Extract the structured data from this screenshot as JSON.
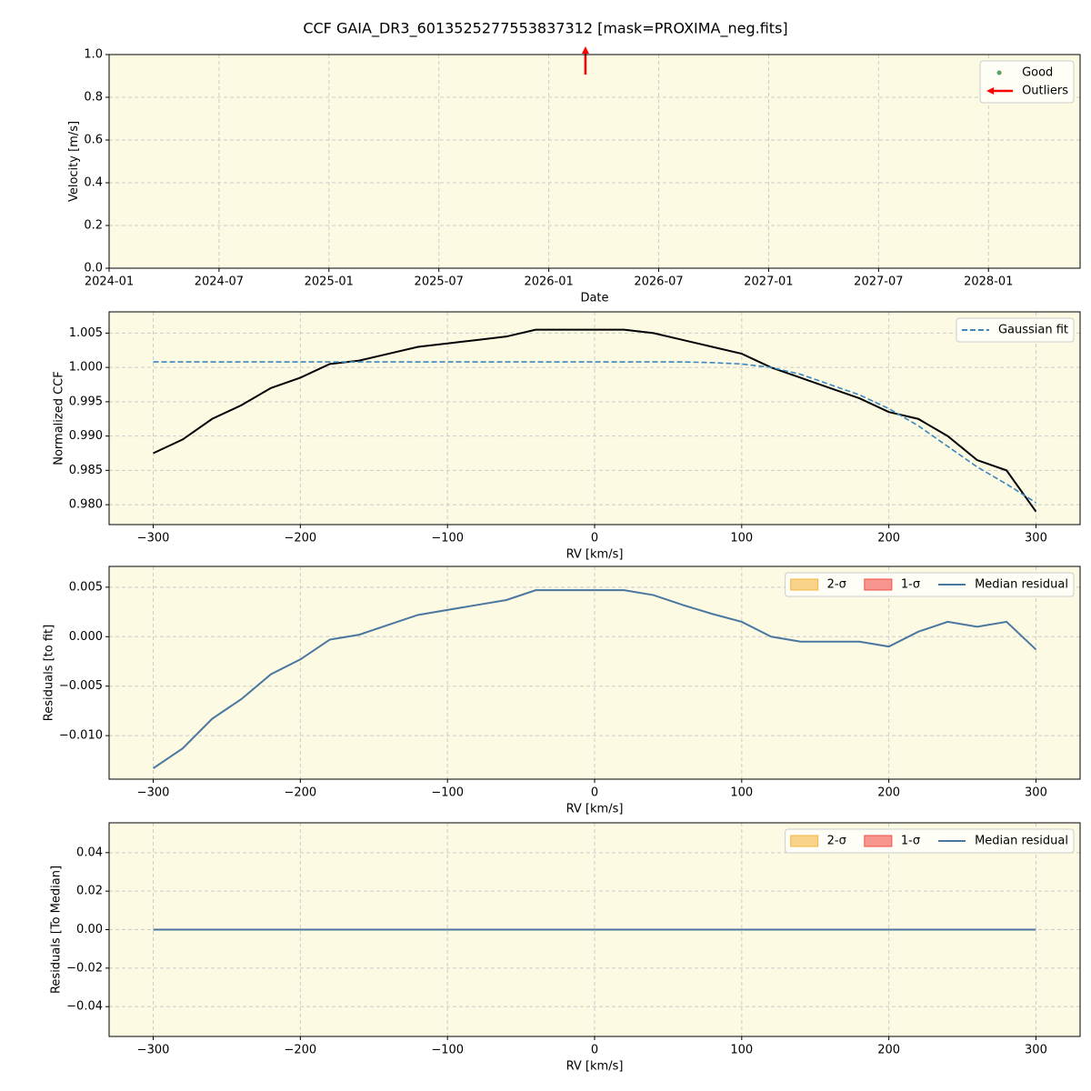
{
  "title": "CCF GAIA_DR3_6013525277553837312 [mask=PROXIMA_neg.fits]",
  "chart_data": [
    {
      "type": "scatter",
      "xlabel": "Date",
      "ylabel": "Velocity [m/s]",
      "background": "#fcfae2",
      "grid": true,
      "legend": "upper right",
      "xlim": [
        "2024-01",
        "2028-06"
      ],
      "xticks": [
        "2024-01",
        "2024-07",
        "2025-01",
        "2025-07",
        "2026-01",
        "2026-07",
        "2027-01",
        "2027-07",
        "2028-01"
      ],
      "ylim": [
        0,
        1
      ],
      "yticks": [
        {
          "value": 0,
          "label": "0.0"
        },
        0.2,
        0.4,
        0.6,
        0.8,
        {
          "value": 1,
          "label": "1.0"
        }
      ],
      "series": [
        {
          "name": "Good",
          "color": "#5aa05a",
          "marker": "dot"
        },
        {
          "name": "Outliers",
          "color": "#ff0000",
          "marker": "arrow",
          "x": [
            "2026-03"
          ],
          "direction": "up"
        }
      ]
    },
    {
      "type": "line",
      "xlabel": "RV [km/s]",
      "ylabel": "Normalized CCF",
      "background": "#fcfae2",
      "grid": true,
      "legend": "upper right",
      "xlim": [
        -330,
        330
      ],
      "xticks": [
        {
          "value": -300,
          "label": "−300"
        },
        {
          "value": -200,
          "label": "−200"
        },
        {
          "value": -100,
          "label": "−100"
        },
        0,
        100,
        200,
        300
      ],
      "ylim": [
        0.9771,
        1.0081
      ],
      "yticks": [
        {
          "value": 0.98,
          "label": "0.980"
        },
        {
          "value": 0.985,
          "label": "0.985"
        },
        {
          "value": 0.99,
          "label": "0.990"
        },
        {
          "value": 0.995,
          "label": "0.995"
        },
        {
          "value": 1.0,
          "label": "1.000"
        },
        {
          "value": 1.005,
          "label": "1.005"
        }
      ],
      "x": [
        -300,
        -280,
        -260,
        -240,
        -220,
        -200,
        -180,
        -160,
        -140,
        -120,
        -100,
        -80,
        -60,
        -40,
        -20,
        0,
        20,
        40,
        60,
        80,
        100,
        120,
        140,
        160,
        180,
        200,
        220,
        240,
        260,
        280,
        300
      ],
      "series": [
        {
          "color": "#000000",
          "values": [
            0.9875,
            0.9895,
            0.9925,
            0.9945,
            0.997,
            0.9985,
            1.0005,
            1.001,
            1.002,
            1.003,
            1.0035,
            1.004,
            1.0045,
            1.0055,
            1.0055,
            1.0055,
            1.0055,
            1.005,
            1.004,
            1.003,
            1.002,
            1.0,
            0.9985,
            0.997,
            0.9955,
            0.9935,
            0.9925,
            0.99,
            0.9865,
            0.985,
            0.979
          ]
        },
        {
          "name": "Gaussian fit",
          "color": "#3a87c0",
          "dashed": true,
          "values": [
            1.0008,
            1.0008,
            1.0008,
            1.0008,
            1.0008,
            1.0008,
            1.0008,
            1.0008,
            1.0008,
            1.0008,
            1.0008,
            1.0008,
            1.0008,
            1.0008,
            1.0008,
            1.0008,
            1.0008,
            1.0008,
            1.0008,
            1.0007,
            1.0005,
            1.0,
            0.999,
            0.9975,
            0.996,
            0.994,
            0.9915,
            0.9885,
            0.9855,
            0.983,
            0.9803
          ]
        }
      ]
    },
    {
      "type": "line",
      "xlabel": "RV [km/s]",
      "ylabel": "Residuals [to fit]",
      "background": "#fcfae2",
      "grid": true,
      "legend": "upper right",
      "xlim": [
        -330,
        330
      ],
      "xticks": [
        {
          "value": -300,
          "label": "−300"
        },
        {
          "value": -200,
          "label": "−200"
        },
        {
          "value": -100,
          "label": "−100"
        },
        0,
        100,
        200,
        300
      ],
      "ylim": [
        -0.0144,
        0.0071
      ],
      "yticks": [
        {
          "value": -0.01,
          "label": "−0.010"
        },
        {
          "value": -0.005,
          "label": "−0.005"
        },
        {
          "value": 0,
          "label": "0.000"
        },
        {
          "value": 0.005,
          "label": "0.005"
        }
      ],
      "x": [
        -300,
        -280,
        -260,
        -240,
        -220,
        -200,
        -180,
        -160,
        -140,
        -120,
        -100,
        -80,
        -60,
        -40,
        -20,
        0,
        20,
        40,
        60,
        80,
        100,
        120,
        140,
        160,
        180,
        200,
        220,
        240,
        260,
        280,
        300
      ],
      "series": [
        {
          "name": "2-σ",
          "color": "#f5b642",
          "marker": "band"
        },
        {
          "name": "1-σ",
          "color": "#f0504a",
          "marker": "band"
        },
        {
          "name": "Median residual",
          "color": "#4a77a0",
          "values": [
            -0.0133,
            -0.0113,
            -0.0083,
            -0.0063,
            -0.0038,
            -0.0023,
            -0.0003,
            0.0002,
            0.0012,
            0.0022,
            0.0027,
            0.0032,
            0.0037,
            0.0047,
            0.0047,
            0.0047,
            0.0047,
            0.0042,
            0.0032,
            0.0023,
            0.0015,
            0.0,
            -0.0005,
            -0.0005,
            -0.0005,
            -0.001,
            0.0005,
            0.0015,
            0.001,
            0.0015,
            -0.0013
          ]
        }
      ]
    },
    {
      "type": "line",
      "xlabel": "RV [km/s]",
      "ylabel": "Residuals [To Median]",
      "background": "#fcfae2",
      "grid": true,
      "legend": "upper right",
      "xlim": [
        -330,
        330
      ],
      "xticks": [
        {
          "value": -300,
          "label": "−300"
        },
        {
          "value": -200,
          "label": "−200"
        },
        {
          "value": -100,
          "label": "−100"
        },
        0,
        100,
        200,
        300
      ],
      "ylim": [
        -0.0555,
        0.0555
      ],
      "yticks": [
        {
          "value": -0.04,
          "label": "−0.04"
        },
        {
          "value": -0.02,
          "label": "−0.02"
        },
        {
          "value": 0,
          "label": "0.00"
        },
        {
          "value": 0.02,
          "label": "0.02"
        },
        {
          "value": 0.04,
          "label": "0.04"
        }
      ],
      "x": [
        -300,
        300
      ],
      "series": [
        {
          "name": "2-σ",
          "color": "#f5b642",
          "marker": "band"
        },
        {
          "name": "1-σ",
          "color": "#f0504a",
          "marker": "band"
        },
        {
          "name": "Median residual",
          "color": "#4a77a0",
          "values": [
            0,
            0
          ]
        }
      ]
    }
  ]
}
